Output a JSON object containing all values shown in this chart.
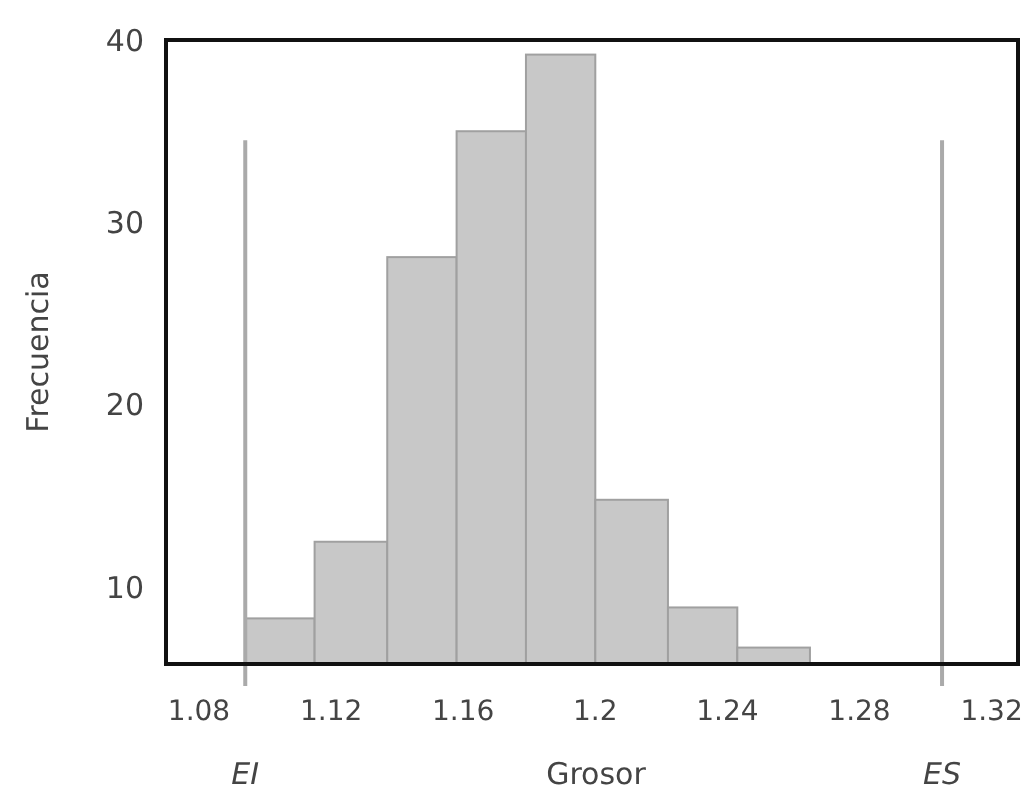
{
  "chart_data": {
    "type": "histogram",
    "xlabel": "Grosor",
    "ylabel": "Frecuencia",
    "bins": [
      1.094,
      1.115,
      1.137,
      1.158,
      1.179,
      1.2,
      1.222,
      1.243,
      1.265
    ],
    "values": [
      8.3,
      12.5,
      28.1,
      35,
      39.2,
      14.8,
      8.9,
      6.7
    ],
    "color": "#c8c8c8",
    "xlim": [
      1.07,
      1.328
    ],
    "xticks": [
      1.08,
      1.12,
      1.16,
      1.2,
      1.24,
      1.28,
      1.32
    ],
    "ylim": [
      5.8,
      40
    ],
    "yticks": [
      10,
      20,
      30,
      40
    ],
    "ref_lines": [
      {
        "axis": "x",
        "value": 1.094,
        "label": "EI",
        "color": "#aaaaaa"
      },
      {
        "axis": "x",
        "value": 1.305,
        "label": "ES",
        "color": "#aaaaaa"
      }
    ],
    "grid": false
  }
}
